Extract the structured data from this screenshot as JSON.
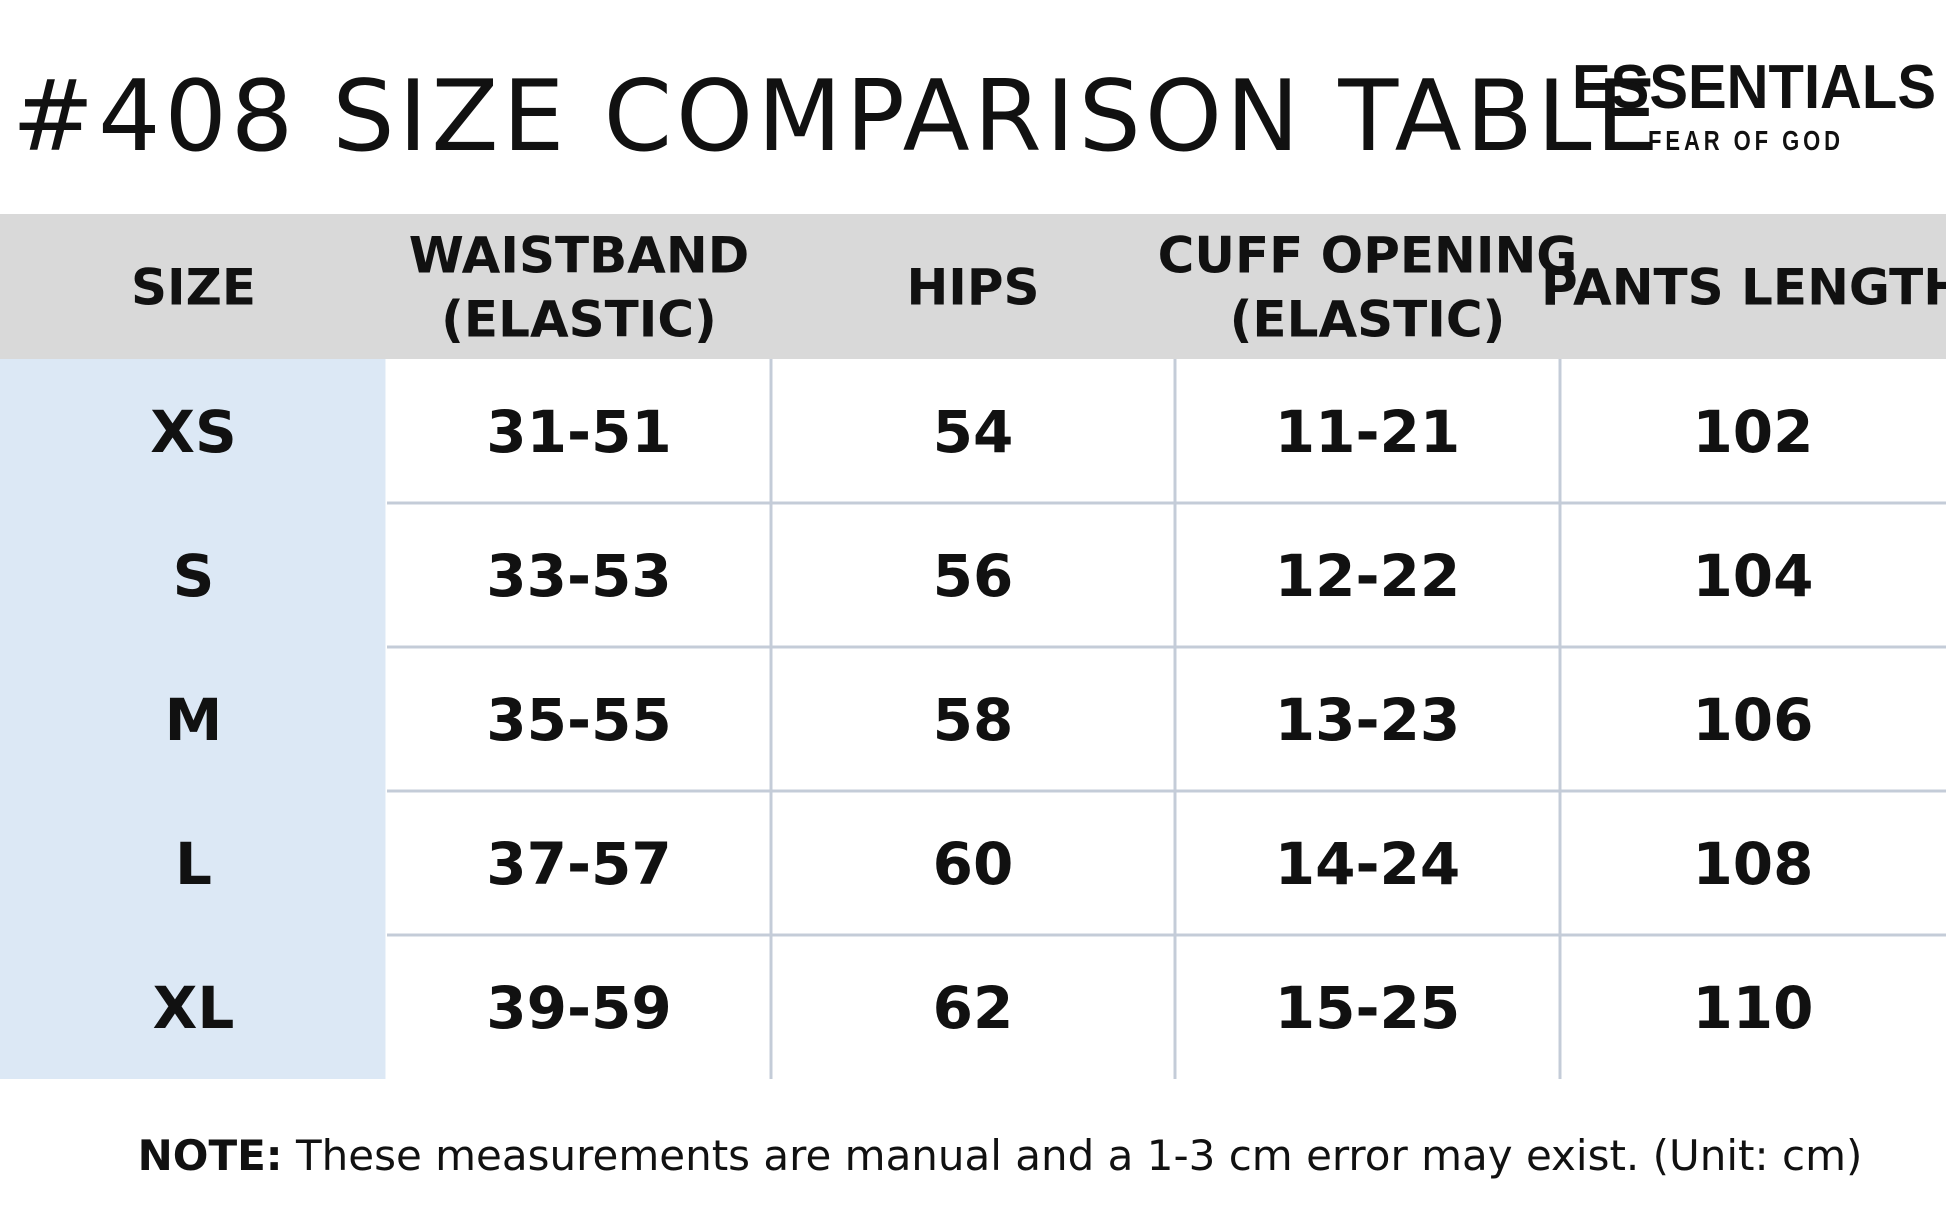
{
  "header": {
    "title": "#408  SIZE  COMPARISON  TABLE",
    "brand": "ESSENTIALS",
    "brand_sub": "FEAR OF GOD"
  },
  "table": {
    "columns": [
      [
        "SIZE"
      ],
      [
        "WAISTBAND",
        "(ELASTIC)"
      ],
      [
        "HIPS"
      ],
      [
        "CUFF OPENING",
        "(ELASTIC)"
      ],
      [
        "PANTS LENGTH"
      ]
    ],
    "rows": [
      [
        "XS",
        "31-51",
        "54",
        "11-21",
        "102"
      ],
      [
        "S",
        "33-53",
        "56",
        "12-22",
        "104"
      ],
      [
        "M",
        "35-55",
        "58",
        "13-23",
        "106"
      ],
      [
        "L",
        "37-57",
        "60",
        "14-24",
        "108"
      ],
      [
        "XL",
        "39-59",
        "62",
        "15-25",
        "110"
      ]
    ]
  },
  "note": {
    "label": "NOTE:",
    "text": "These measurements are manual and a 1-3 cm error may exist. (Unit: cm)"
  }
}
